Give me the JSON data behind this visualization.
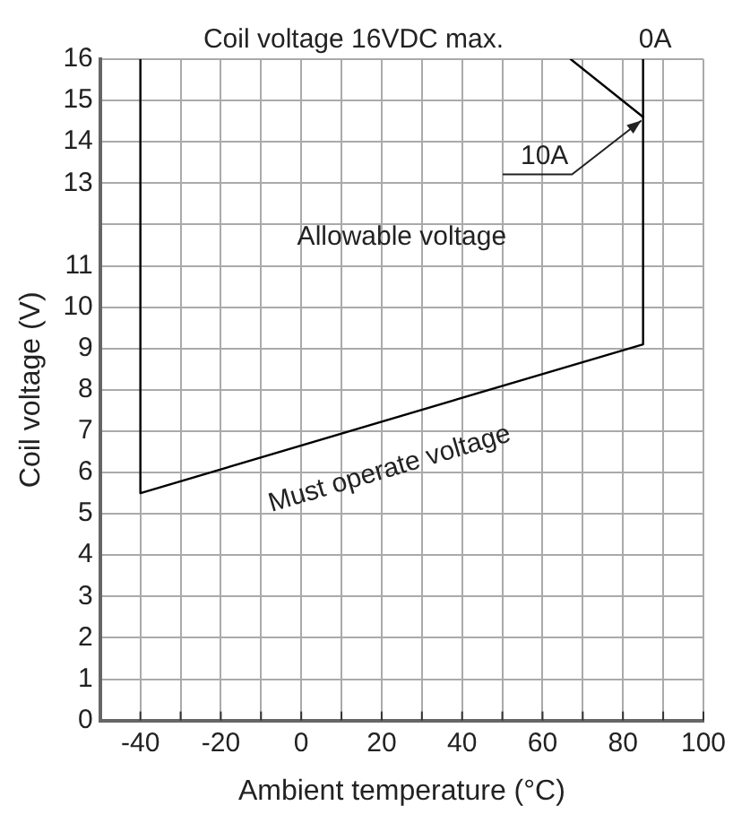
{
  "chart_data": {
    "type": "line",
    "xlabel": "Ambient temperature (°C)",
    "ylabel": "Coil voltage (V)",
    "series": [
      {
        "color": "#000000",
        "x": [
          -40,
          -40,
          85,
          85
        ],
        "values": [
          16,
          5.5,
          9.1,
          16
        ]
      },
      {
        "color": "#000000",
        "x": [
          67,
          85
        ],
        "values": [
          16,
          14.6
        ]
      }
    ],
    "xlim": [
      -50,
      100
    ],
    "xticks": [
      -40,
      {
        "value": -30,
        "label": null
      },
      -20,
      {
        "value": -10,
        "label": null
      },
      0,
      {
        "value": 10,
        "label": null
      },
      20,
      {
        "value": 30,
        "label": null
      },
      40,
      {
        "value": 50,
        "label": null
      },
      60,
      {
        "value": 70,
        "label": null
      },
      80,
      {
        "value": 90,
        "label": null
      },
      100
    ],
    "ylim": [
      0,
      16
    ],
    "yticks": [
      0,
      1,
      2,
      3,
      4,
      5,
      6,
      7,
      8,
      9,
      10,
      11,
      {
        "value": 12,
        "label": null
      },
      13,
      14,
      15,
      16
    ],
    "grid": true,
    "marker": "none",
    "line_style": "solid",
    "legend": false,
    "annotations": [
      "Coil voltage 16VDC max.",
      "0A",
      {
        "text": "10A",
        "x": 85,
        "y": 14.6
      },
      "Allowable voltage",
      "Must operate voltage"
    ]
  }
}
